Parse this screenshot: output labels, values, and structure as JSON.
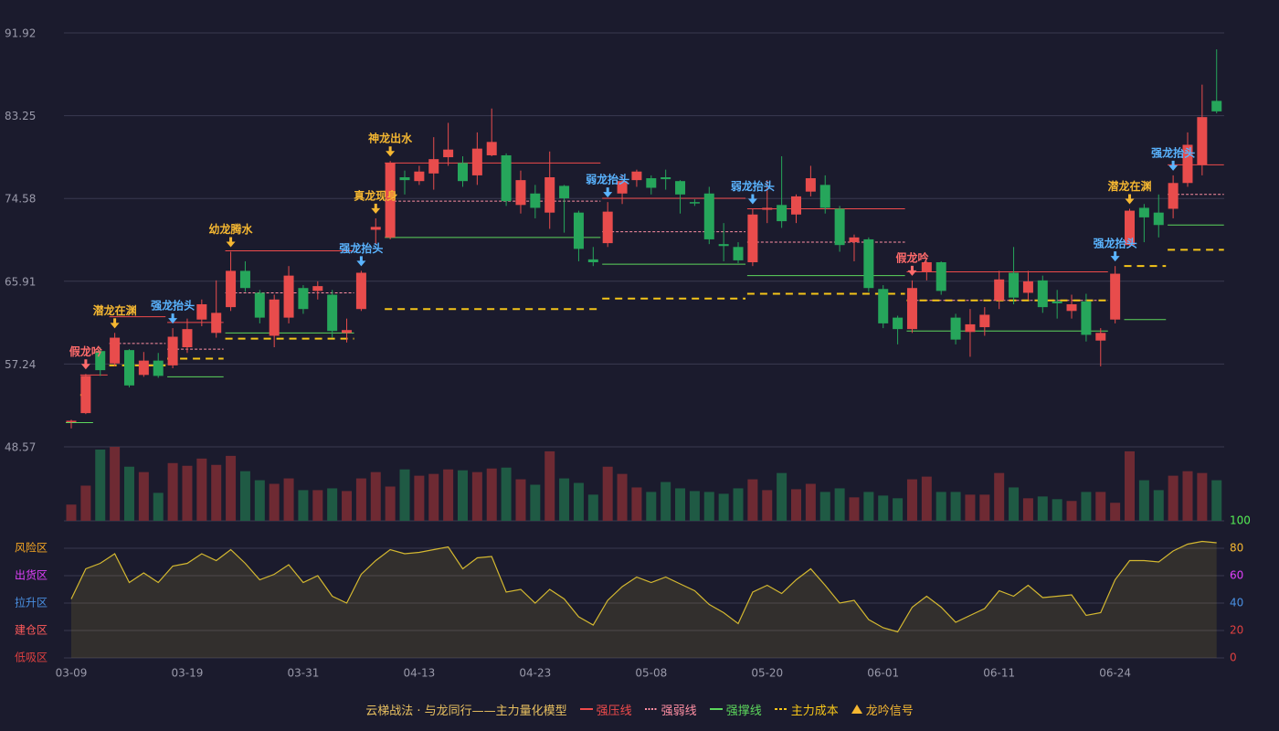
{
  "chart_data": {
    "type": "candlestick",
    "categories": [
      "03-09",
      null,
      null,
      null,
      null,
      null,
      null,
      null,
      "03-19",
      null,
      null,
      null,
      null,
      null,
      null,
      null,
      "03-31",
      null,
      null,
      null,
      null,
      null,
      null,
      null,
      "04-13",
      null,
      null,
      null,
      null,
      null,
      null,
      null,
      "04-23",
      null,
      null,
      null,
      null,
      null,
      null,
      null,
      "05-08",
      null,
      null,
      null,
      null,
      null,
      null,
      null,
      "05-20",
      null,
      null,
      null,
      null,
      null,
      null,
      null,
      "06-01",
      null,
      null,
      null,
      null,
      null,
      null,
      null,
      "06-11",
      null,
      null,
      null,
      null,
      null,
      null,
      null,
      "06-24",
      null,
      null,
      null,
      null,
      null,
      null,
      null
    ],
    "open": [
      51.2,
      52.1,
      58.6,
      57.3,
      58.7,
      56.1,
      57.6,
      57.1,
      59.0,
      61.9,
      60.5,
      63.2,
      67.0,
      64.7,
      60.2,
      62.1,
      65.2,
      64.9,
      64.5,
      60.5,
      63.0,
      71.3,
      70.5,
      76.8,
      76.4,
      77.2,
      78.9,
      78.3,
      77.0,
      79.1,
      79.1,
      73.9,
      75.1,
      73.1,
      75.9,
      73.1,
      68.2,
      69.9,
      75.1,
      76.5,
      76.7,
      76.8,
      76.4,
      74.2,
      75.1,
      69.8,
      69.5,
      67.9,
      73.4,
      73.9,
      72.9,
      75.3,
      76.0,
      73.5,
      70.0,
      70.3,
      65.1,
      62.1,
      60.9,
      66.9,
      67.9,
      62.1,
      60.6,
      61.1,
      63.9,
      66.8,
      64.7,
      66.0,
      63.8,
      62.8,
      63.8,
      59.7,
      61.9,
      69.7,
      73.6,
      73.1,
      73.5,
      76.2,
      78.1,
      84.8
    ],
    "high": [
      51.4,
      56.2,
      59.0,
      60.5,
      58.8,
      58.5,
      58.4,
      61.0,
      62.0,
      64.0,
      66.0,
      69.0,
      68.0,
      65.0,
      64.5,
      67.5,
      65.5,
      65.9,
      65.0,
      62.0,
      67.0,
      72.5,
      78.5,
      77.5,
      78.0,
      81.0,
      82.5,
      79.0,
      81.5,
      84.0,
      79.3,
      77.5,
      76.0,
      79.5,
      76.0,
      73.3,
      69.5,
      74.2,
      77.0,
      77.6,
      77.0,
      77.6,
      76.5,
      74.5,
      75.8,
      72.0,
      70.0,
      73.5,
      76.5,
      79.0,
      75.0,
      78.0,
      77.0,
      73.8,
      70.8,
      70.5,
      65.5,
      62.3,
      66.0,
      68.0,
      68.0,
      62.5,
      63.0,
      63.2,
      67.0,
      69.5,
      67.0,
      66.5,
      65.0,
      64.5,
      64.6,
      61.0,
      67.5,
      73.5,
      74.0,
      75.0,
      77.0,
      81.5,
      86.5,
      90.2
    ],
    "low": [
      50.5,
      52.0,
      56.0,
      57.0,
      54.8,
      55.9,
      55.8,
      56.8,
      58.4,
      61.2,
      60.0,
      62.8,
      64.8,
      61.5,
      59.0,
      61.5,
      62.5,
      64.0,
      60.0,
      59.5,
      62.8,
      69.8,
      70.3,
      75.0,
      76.0,
      75.5,
      78.0,
      75.8,
      76.0,
      79.0,
      73.8,
      73.0,
      72.5,
      71.4,
      71.0,
      68.0,
      67.5,
      69.5,
      74.0,
      75.8,
      75.0,
      75.5,
      73.0,
      73.8,
      69.8,
      68.0,
      67.8,
      67.5,
      72.0,
      71.5,
      72.0,
      74.8,
      73.0,
      69.0,
      68.0,
      64.8,
      61.0,
      59.3,
      60.5,
      66.0,
      64.5,
      59.3,
      58.0,
      60.2,
      63.0,
      63.5,
      64.0,
      62.6,
      62.0,
      62.0,
      59.6,
      57.0,
      61.5,
      69.5,
      70.0,
      70.5,
      72.5,
      75.8,
      77.0,
      83.5
    ],
    "close": [
      51.3,
      56.0,
      56.6,
      60.0,
      55.0,
      57.6,
      56.0,
      60.1,
      60.9,
      63.5,
      62.6,
      67.0,
      65.2,
      62.1,
      64.0,
      66.5,
      63.0,
      65.4,
      60.7,
      60.8,
      66.8,
      71.6,
      78.3,
      76.5,
      77.4,
      78.7,
      79.7,
      76.4,
      79.8,
      80.5,
      74.3,
      76.5,
      73.6,
      76.8,
      74.6,
      69.3,
      67.9,
      73.2,
      76.4,
      77.4,
      75.7,
      76.6,
      75.0,
      74.1,
      70.3,
      69.6,
      68.1,
      72.9,
      73.6,
      72.2,
      74.8,
      76.7,
      73.6,
      69.7,
      70.5,
      65.2,
      61.5,
      60.9,
      65.2,
      67.9,
      64.9,
      59.8,
      61.4,
      62.4,
      66.1,
      64.2,
      65.9,
      63.2,
      63.6,
      63.5,
      60.3,
      60.5,
      66.7,
      73.3,
      72.6,
      71.8,
      76.2,
      80.2,
      83.1,
      83.7
    ],
    "volume": [
      18,
      39,
      79,
      82,
      60,
      54,
      31,
      64,
      61,
      69,
      62,
      72,
      55,
      45,
      41,
      47,
      34,
      34,
      36,
      33,
      47,
      54,
      38,
      57,
      50,
      52,
      57,
      56,
      54,
      58,
      59,
      46,
      40,
      77,
      47,
      42,
      29,
      60,
      52,
      37,
      32,
      43,
      36,
      33,
      32,
      30,
      36,
      46,
      34,
      53,
      35,
      41,
      32,
      36,
      26,
      32,
      28,
      25,
      46,
      49,
      32,
      32,
      29,
      29,
      53,
      37,
      25,
      27,
      24,
      22,
      32,
      32,
      20,
      77,
      45,
      34,
      50,
      55,
      53,
      45
    ],
    "up_color": "#e84c4c",
    "down_color": "#26a65b",
    "volume_up_color": "#6e2a33",
    "volume_down_color": "#1f5a44",
    "ylim": [
      48.57,
      91.92
    ],
    "yticks": [
      48.57,
      57.24,
      65.91,
      74.58,
      83.25,
      91.92
    ],
    "grid": true,
    "levels": [
      {
        "name": "强压线",
        "color": "#ef4b4b",
        "style": "solid",
        "segments": [
          [
            1,
            2,
            56.1
          ],
          [
            3,
            6,
            62.2
          ],
          [
            7,
            10,
            61.6
          ],
          [
            11,
            19,
            69.1
          ],
          [
            22,
            36,
            78.3
          ],
          [
            37,
            46,
            74.6
          ],
          [
            47,
            57,
            73.5
          ],
          [
            58,
            71,
            66.9
          ],
          [
            76,
            79,
            78.1
          ]
        ]
      },
      {
        "name": "强弱线",
        "color": "#ff8fa3",
        "style": "dotted",
        "segments": [
          [
            3,
            6,
            59.4
          ],
          [
            7,
            10,
            58.8
          ],
          [
            11,
            19,
            64.7
          ],
          [
            22,
            36,
            74.3
          ],
          [
            37,
            46,
            71.1
          ],
          [
            47,
            57,
            70.0
          ],
          [
            58,
            71,
            63.9
          ],
          [
            76,
            79,
            75.0
          ]
        ]
      },
      {
        "name": "强撑线",
        "color": "#5cd65c",
        "style": "solid",
        "segments": [
          [
            0,
            1,
            51.1
          ],
          [
            7,
            10,
            55.9
          ],
          [
            11,
            19,
            60.5
          ],
          [
            22,
            36,
            70.5
          ],
          [
            37,
            46,
            67.7
          ],
          [
            47,
            57,
            66.5
          ],
          [
            58,
            71,
            60.7
          ],
          [
            73,
            75,
            61.9
          ],
          [
            76,
            79,
            71.8
          ]
        ]
      },
      {
        "name": "主力成本",
        "color": "#f5c518",
        "style": "dashed",
        "segments": [
          [
            1,
            1,
            54.0
          ],
          [
            3,
            6,
            57.1
          ],
          [
            7,
            10,
            57.8
          ],
          [
            11,
            19,
            59.9
          ],
          [
            22,
            36,
            63.0
          ],
          [
            37,
            46,
            64.1
          ],
          [
            47,
            57,
            64.6
          ],
          [
            58,
            71,
            63.9
          ],
          [
            73,
            75,
            67.5
          ],
          [
            76,
            79,
            69.2
          ]
        ]
      }
    ],
    "signals": {
      "name": "龙吟信号",
      "color": "#f5b731",
      "items": [
        {
          "index": 1,
          "label": "假龙吟",
          "color": "#ff6b6b"
        },
        {
          "index": 3,
          "label": "潜龙在渊",
          "color": "#f5b731"
        },
        {
          "index": 7,
          "label": "强龙抬头",
          "color": "#5ab4ff"
        },
        {
          "index": 11,
          "label": "幼龙腾水",
          "color": "#f5b731"
        },
        {
          "index": 20,
          "label": "强龙抬头",
          "color": "#5ab4ff"
        },
        {
          "index": 21,
          "label": "真龙现身",
          "color": "#f5b731"
        },
        {
          "index": 22,
          "label": "神龙出水",
          "color": "#f5b731"
        },
        {
          "index": 37,
          "label": "弱龙抬头",
          "color": "#5ab4ff"
        },
        {
          "index": 47,
          "label": "弱龙抬头",
          "color": "#5ab4ff"
        },
        {
          "index": 58,
          "label": "假龙吟",
          "color": "#ff6b6b"
        },
        {
          "index": 72,
          "label": "强龙抬头",
          "color": "#5ab4ff"
        },
        {
          "index": 73,
          "label": "潜龙在渊",
          "color": "#f5b731"
        },
        {
          "index": 76,
          "label": "强龙抬头",
          "color": "#5ab4ff"
        }
      ]
    },
    "oscillator": {
      "values": [
        43,
        65,
        69,
        76,
        55,
        62,
        55,
        67,
        69,
        76,
        71,
        79,
        69,
        57,
        61,
        68,
        55,
        60,
        45,
        40,
        61,
        71,
        79,
        76,
        77,
        79,
        81,
        65,
        73,
        74,
        48,
        50,
        40,
        50,
        43,
        30,
        24,
        42,
        52,
        59,
        55,
        59,
        54,
        49,
        39,
        33,
        25,
        48,
        53,
        47,
        57,
        65,
        53,
        40,
        42,
        28,
        22,
        19,
        37,
        45,
        37,
        26,
        31,
        36,
        49,
        45,
        53,
        44,
        45,
        46,
        31,
        33,
        57,
        71,
        71,
        70,
        78,
        83,
        85,
        84
      ],
      "color": "#d4b830",
      "ylim": [
        0,
        100
      ],
      "yticks": [
        0,
        20,
        40,
        60,
        80,
        100
      ],
      "tick_colors": [
        "#e04040",
        "#e04040",
        "#4a90e2",
        "#e040fb",
        "#f5b731",
        "#55ee55"
      ],
      "zones": [
        {
          "value": 0,
          "label": "低吸区",
          "color": "#e04040"
        },
        {
          "value": 20,
          "label": "建仓区",
          "color": "#ff5a5a"
        },
        {
          "value": 40,
          "label": "拉升区",
          "color": "#4a90e2"
        },
        {
          "value": 60,
          "label": "出货区",
          "color": "#e040fb"
        },
        {
          "value": 80,
          "label": "风险区",
          "color": "#f5a623"
        }
      ]
    },
    "legend_title": "云梯战法 · 与龙同行——主力量化模型",
    "legend_title_color": "#e8c060"
  }
}
